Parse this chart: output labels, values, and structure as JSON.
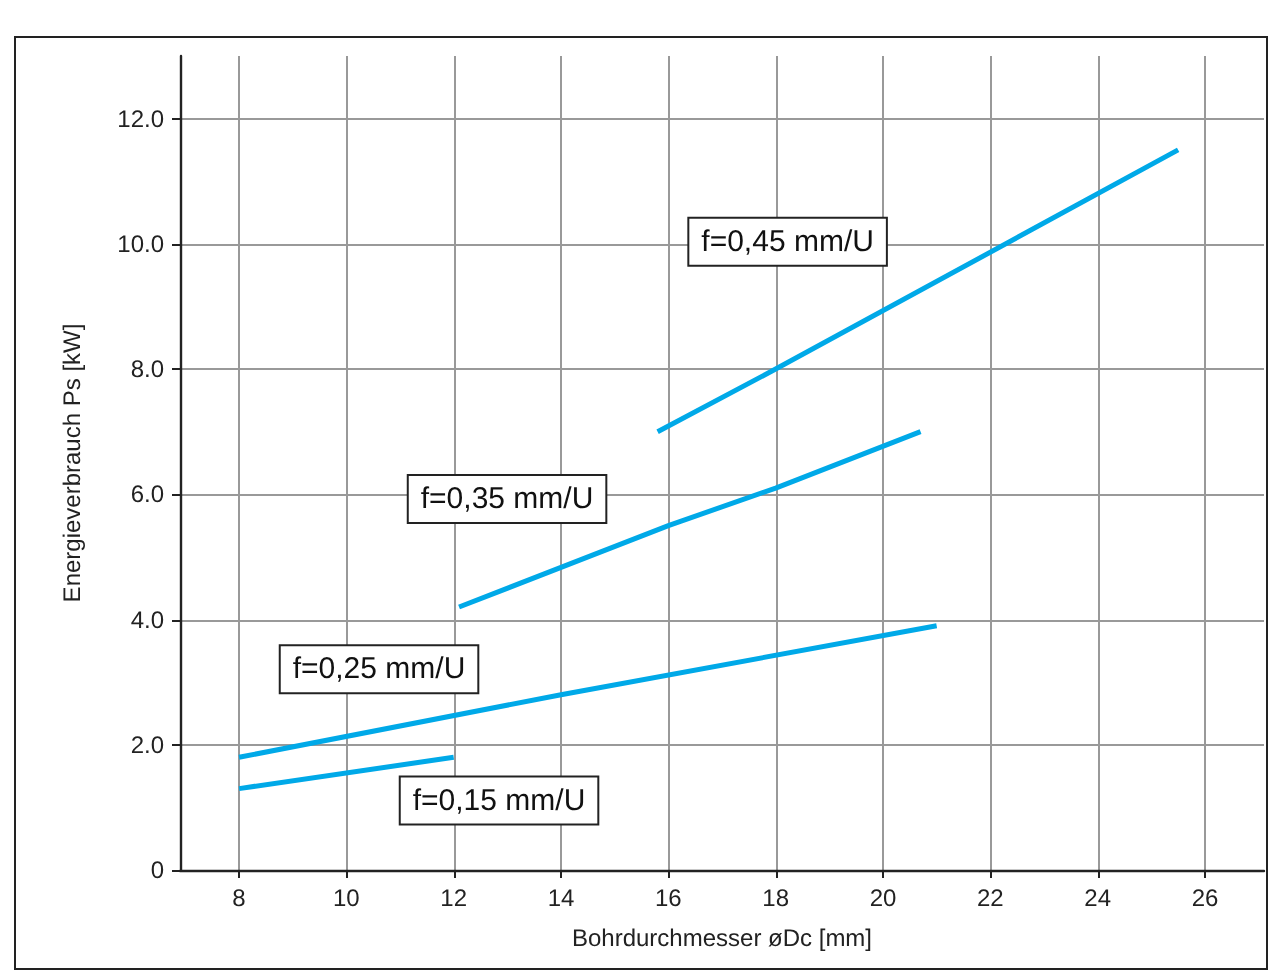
{
  "chart_data": {
    "type": "line",
    "xlabel": "Bohrdurchmesser øDc [mm]",
    "ylabel": "Energieverbrauch Ps [kW]",
    "series": [
      {
        "name": "f=0,15 mm/U",
        "color": "#00a9e8",
        "x": [
          8,
          12
        ],
        "values": [
          1.3,
          1.8
        ]
      },
      {
        "name": "f=0,25 mm/U",
        "color": "#00a9e8",
        "x": [
          8,
          14,
          21
        ],
        "values": [
          1.8,
          2.8,
          3.9
        ]
      },
      {
        "name": "f=0,35 mm/U",
        "color": "#00a9e8",
        "x": [
          12.1,
          16,
          18,
          20.7
        ],
        "values": [
          4.2,
          5.5,
          6.1,
          7.0
        ]
      },
      {
        "name": "f=0,45 mm/U",
        "color": "#00a9e8",
        "x": [
          15.8,
          18,
          25.5
        ],
        "values": [
          7.0,
          8.0,
          11.5
        ]
      }
    ],
    "xlim": [
      6.9,
      27.1
    ],
    "xticks": [
      8,
      10,
      12,
      14,
      16,
      18,
      20,
      22,
      24,
      26
    ],
    "ylim": [
      0,
      13
    ],
    "yticks": [
      {
        "value": 0,
        "label": "0"
      },
      {
        "value": 2,
        "label": "2.0"
      },
      {
        "value": 4,
        "label": "4.0"
      },
      {
        "value": 6,
        "label": "6.0"
      },
      {
        "value": 8,
        "label": "8.0"
      },
      {
        "value": 10,
        "label": "10.0"
      },
      {
        "value": 12,
        "label": "12.0"
      }
    ],
    "grid": true,
    "marker": "none",
    "line_style": "solid"
  }
}
